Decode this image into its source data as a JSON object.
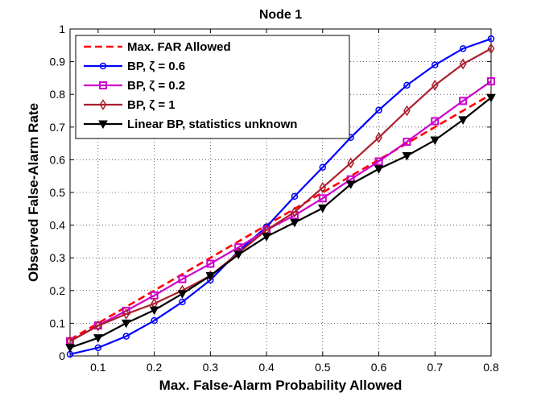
{
  "chart_data": {
    "type": "line",
    "title": "Node 1",
    "xlabel": "Max. False-Alarm Probability Allowed",
    "ylabel": "Observed False-Alarm Rate",
    "xlim": [
      0.05,
      0.8
    ],
    "ylim": [
      0,
      1
    ],
    "grid": true,
    "legend_position": "top-left",
    "x_ticks": [
      0.1,
      0.2,
      0.3,
      0.4,
      0.5,
      0.6,
      0.7,
      0.8
    ],
    "x_tick_labels": [
      "0.1",
      "0.2",
      "0.3",
      "0.4",
      "0.5",
      "0.6",
      "0.7",
      "0.8"
    ],
    "y_ticks": [
      0,
      0.1,
      0.2,
      0.3,
      0.4,
      0.5,
      0.6,
      0.7,
      0.8,
      0.9,
      1
    ],
    "y_tick_labels": [
      "0",
      "0.1",
      "0.2",
      "0.3",
      "0.4",
      "0.5",
      "0.6",
      "0.7",
      "0.8",
      "0.9",
      "1"
    ],
    "x": [
      0.05,
      0.1,
      0.15,
      0.2,
      0.25,
      0.3,
      0.35,
      0.4,
      0.45,
      0.5,
      0.55,
      0.6,
      0.65,
      0.7,
      0.75,
      0.8
    ],
    "series": [
      {
        "name": "Max. FAR Allowed",
        "color": "#ff0000",
        "style": "dashed",
        "marker": "none",
        "values": [
          0.05,
          0.1,
          0.15,
          0.2,
          0.25,
          0.3,
          0.35,
          0.4,
          0.45,
          0.5,
          0.55,
          0.6,
          0.65,
          0.7,
          0.75,
          0.8
        ]
      },
      {
        "name": "BP, ζ = 0.6",
        "color": "#0000ff",
        "style": "solid",
        "marker": "circle",
        "values": [
          0.005,
          0.025,
          0.06,
          0.108,
          0.165,
          0.232,
          0.32,
          0.395,
          0.488,
          0.577,
          0.668,
          0.752,
          0.828,
          0.89,
          0.94,
          0.97
        ]
      },
      {
        "name": "BP, ζ = 0.2",
        "color": "#cc00cc",
        "style": "solid",
        "marker": "square",
        "values": [
          0.045,
          0.093,
          0.138,
          0.185,
          0.235,
          0.282,
          0.332,
          0.385,
          0.43,
          0.482,
          0.54,
          0.595,
          0.655,
          0.718,
          0.78,
          0.84
        ]
      },
      {
        "name": "BP, ζ = 1",
        "color": "#aa1f2e",
        "style": "solid",
        "marker": "diamond",
        "values": [
          0.045,
          0.092,
          0.128,
          0.16,
          0.2,
          0.245,
          0.315,
          0.385,
          0.44,
          0.515,
          0.59,
          0.668,
          0.75,
          0.828,
          0.893,
          0.94
        ]
      },
      {
        "name": "Linear BP, statistics unknown",
        "color": "#000000",
        "style": "solid",
        "marker": "triangle-down",
        "values": [
          0.025,
          0.055,
          0.1,
          0.14,
          0.19,
          0.245,
          0.31,
          0.365,
          0.408,
          0.452,
          0.525,
          0.572,
          0.612,
          0.66,
          0.722,
          0.79
        ]
      }
    ]
  }
}
